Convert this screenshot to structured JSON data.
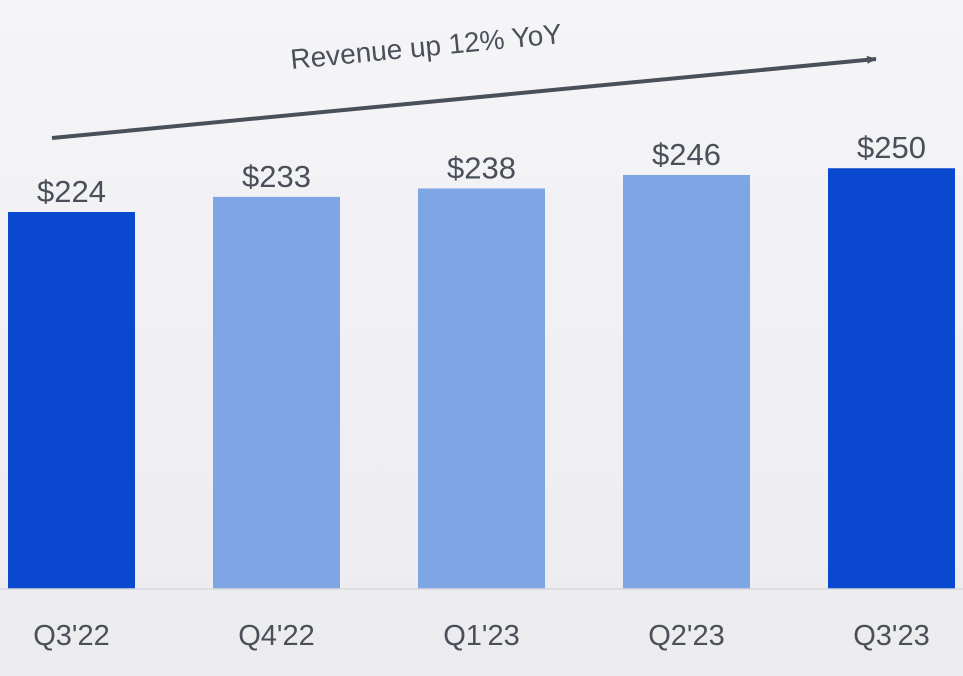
{
  "chart_data": {
    "type": "bar",
    "title": "",
    "categories": [
      "Q3'22",
      "Q4'22",
      "Q1'23",
      "Q2'23",
      "Q3'23"
    ],
    "values": [
      224,
      233,
      238,
      246,
      250
    ],
    "value_labels": [
      "$224",
      "$233",
      "$238",
      "$246",
      "$250"
    ],
    "highlight_color": "#0a48cf",
    "muted_color": "#7ea6e6",
    "bar_colors": [
      "#0a48cf",
      "#7ea6e6",
      "#7ea6e6",
      "#7ea6e6",
      "#0a48cf"
    ],
    "annotation": "Revenue up 12% YoY",
    "xlabel": "",
    "ylabel": "",
    "grid": false,
    "legend": "none"
  }
}
